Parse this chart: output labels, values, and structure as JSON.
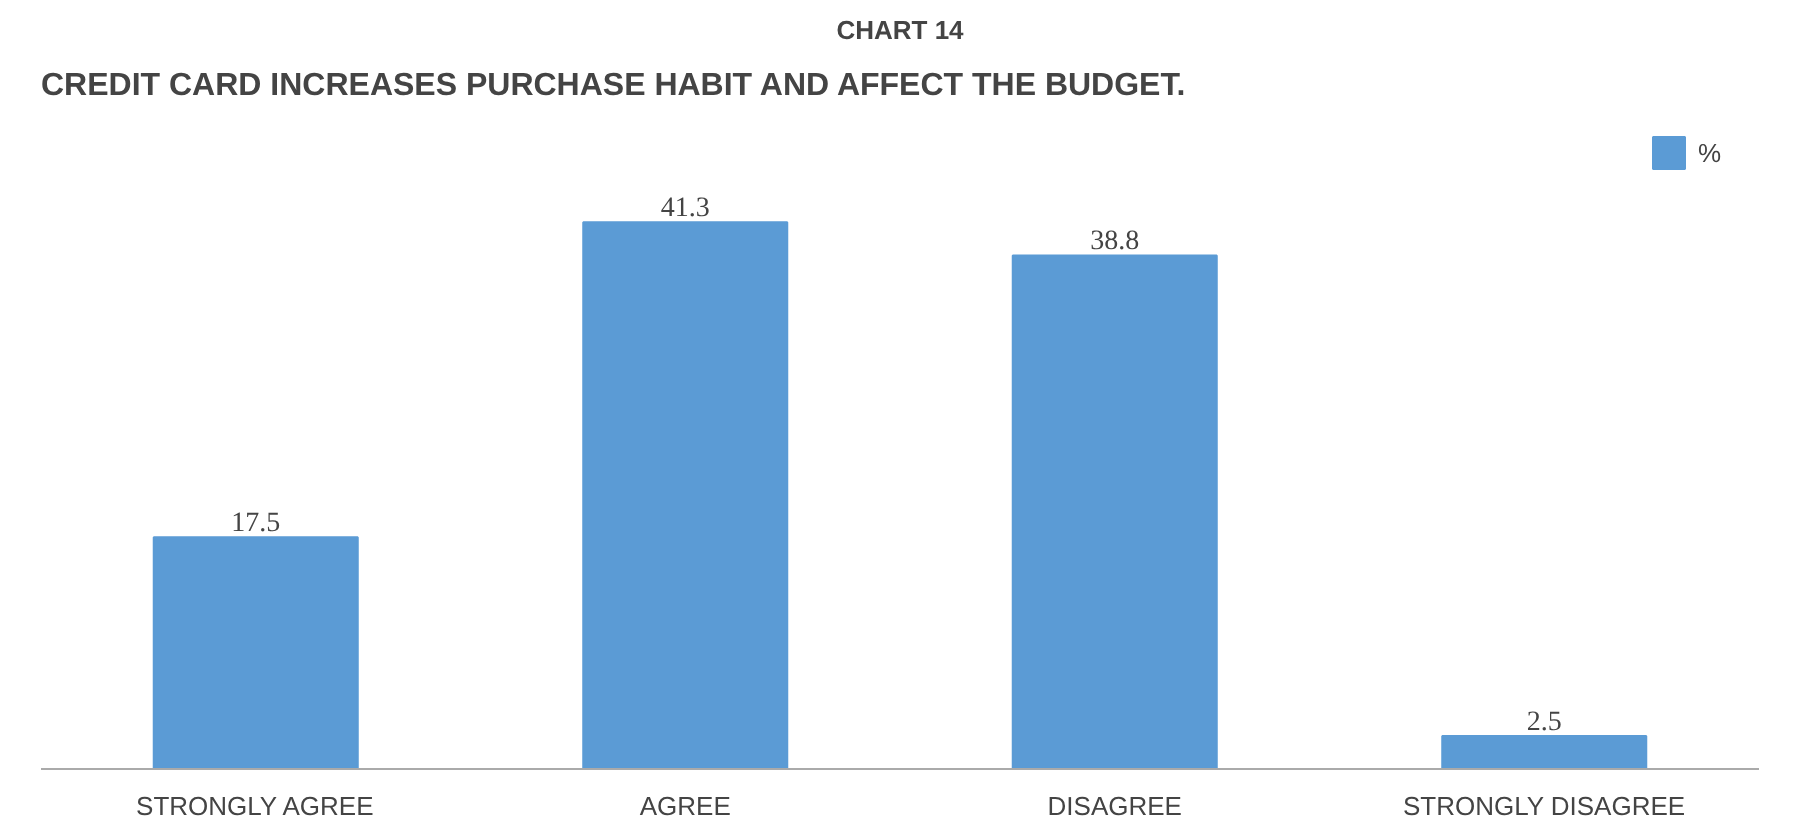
{
  "chart_data": {
    "type": "bar",
    "title": "CHART 14",
    "subtitle": "CREDIT CARD INCREASES PURCHASE HABIT AND AFFECT THE BUDGET.",
    "categories": [
      "STRONGLY AGREE",
      "AGREE",
      "DISAGREE",
      "STRONGLY DISAGREE"
    ],
    "series": [
      {
        "name": "%",
        "color": "#5b9bd5",
        "values": [
          17.5,
          41.3,
          38.8,
          2.5
        ]
      }
    ],
    "data_labels": true,
    "legend": "top right",
    "grid": false
  }
}
